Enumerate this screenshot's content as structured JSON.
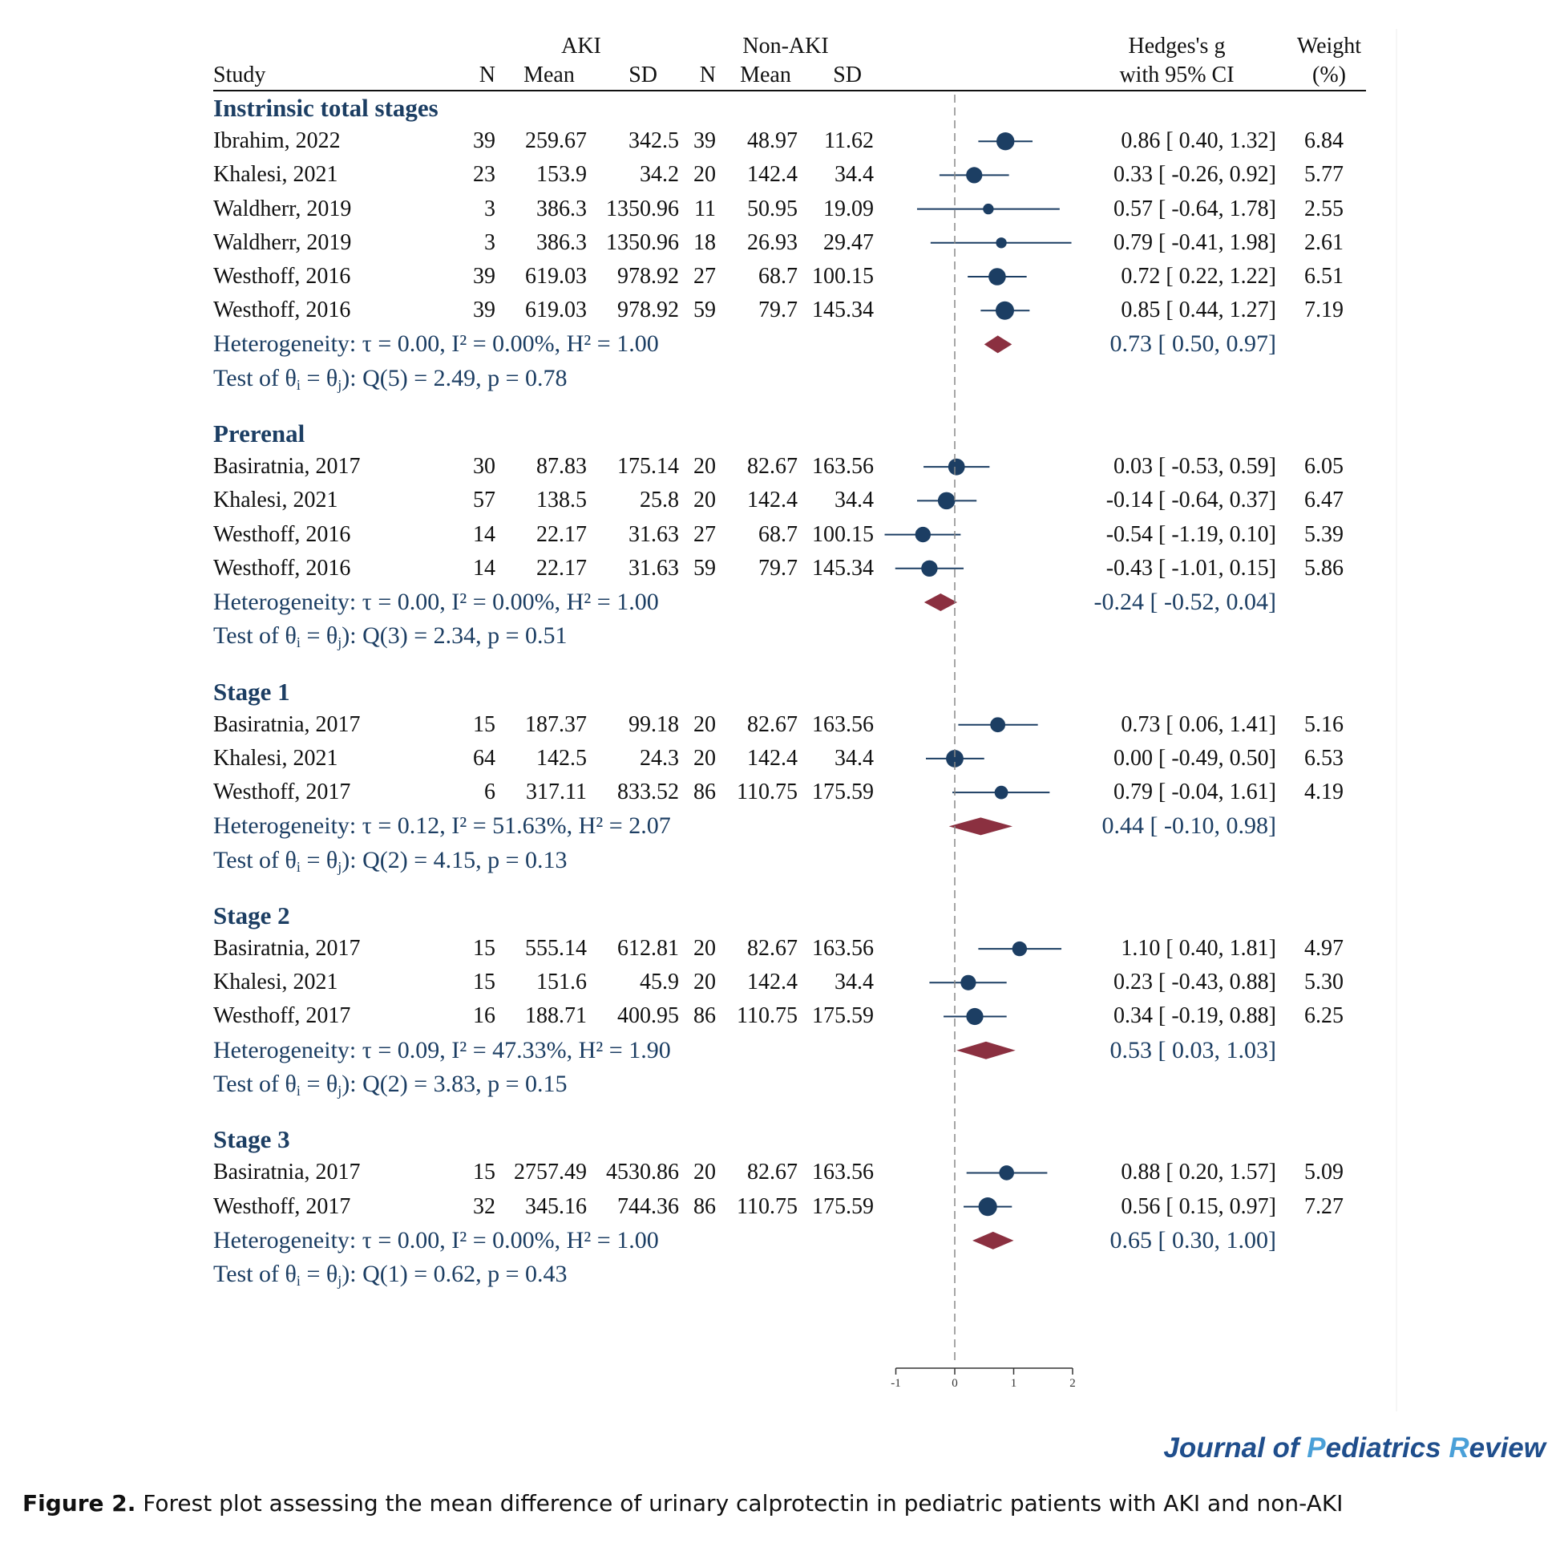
{
  "headers": {
    "study": "Study",
    "aki": "AKI",
    "non_aki": "Non-AKI",
    "n": "N",
    "mean": "Mean",
    "sd": "SD",
    "effect_line1": "Hedges's g",
    "effect_line2": "with 95% CI",
    "weight_line1": "Weight",
    "weight_line2": "(%)"
  },
  "chart_data": {
    "type": "forest",
    "effect_measure": "Hedges's g",
    "xlim": [
      -1,
      2
    ],
    "x_ticks": [
      "-1",
      "0",
      "1",
      "2"
    ],
    "reference_line": 0,
    "groups": [
      {
        "title": "Instrinsic total stages",
        "studies": [
          {
            "study": "Ibrahim, 2022",
            "n1": "39",
            "mean1": "259.67",
            "sd1": "342.5",
            "n2": "39",
            "mean2": "48.97",
            "sd2": "11.62",
            "g": 0.86,
            "lo": 0.4,
            "hi": 1.32,
            "ci_text": "0.86 [  0.40,  1.32]",
            "weight": "6.84"
          },
          {
            "study": "Khalesi, 2021",
            "n1": "23",
            "mean1": "153.9",
            "sd1": "34.2",
            "n2": "20",
            "mean2": "142.4",
            "sd2": "34.4",
            "g": 0.33,
            "lo": -0.26,
            "hi": 0.92,
            "ci_text": "0.33 [ -0.26,  0.92]",
            "weight": "5.77"
          },
          {
            "study": "Waldherr, 2019",
            "n1": "3",
            "mean1": "386.3",
            "sd1": "1350.96",
            "n2": "11",
            "mean2": "50.95",
            "sd2": "19.09",
            "g": 0.57,
            "lo": -0.64,
            "hi": 1.78,
            "ci_text": "0.57 [ -0.64,  1.78]",
            "weight": "2.55"
          },
          {
            "study": "Waldherr, 2019",
            "n1": "3",
            "mean1": "386.3",
            "sd1": "1350.96",
            "n2": "18",
            "mean2": "26.93",
            "sd2": "29.47",
            "g": 0.79,
            "lo": -0.41,
            "hi": 1.98,
            "ci_text": "0.79 [ -0.41,  1.98]",
            "weight": "2.61"
          },
          {
            "study": "Westhoff, 2016",
            "n1": "39",
            "mean1": "619.03",
            "sd1": "978.92",
            "n2": "27",
            "mean2": "68.7",
            "sd2": "100.15",
            "g": 0.72,
            "lo": 0.22,
            "hi": 1.22,
            "ci_text": "0.72 [  0.22,  1.22]",
            "weight": "6.51"
          },
          {
            "study": "Westhoff, 2016",
            "n1": "39",
            "mean1": "619.03",
            "sd1": "978.92",
            "n2": "59",
            "mean2": "79.7",
            "sd2": "145.34",
            "g": 0.85,
            "lo": 0.44,
            "hi": 1.27,
            "ci_text": "0.85 [  0.44,  1.27]",
            "weight": "7.19"
          }
        ],
        "heterogeneity": {
          "tau2": "0.00",
          "i2": "0.00%",
          "h2": "1.00",
          "text_tail": " = 0.00, I² = 0.00%, H² = 1.00"
        },
        "pooled": {
          "g": 0.73,
          "lo": 0.5,
          "hi": 0.97,
          "ci_text": "0.73 [  0.50,  0.97]"
        },
        "test": {
          "df": 5,
          "q": "2.49",
          "p": "0.78",
          "text_tail": "): Q(5) = 2.49, p = 0.78"
        }
      },
      {
        "title": "Prerenal",
        "studies": [
          {
            "study": "Basiratnia, 2017",
            "n1": "30",
            "mean1": "87.83",
            "sd1": "175.14",
            "n2": "20",
            "mean2": "82.67",
            "sd2": "163.56",
            "g": 0.03,
            "lo": -0.53,
            "hi": 0.59,
            "ci_text": "0.03 [ -0.53,  0.59]",
            "weight": "6.05"
          },
          {
            "study": "Khalesi, 2021",
            "n1": "57",
            "mean1": "138.5",
            "sd1": "25.8",
            "n2": "20",
            "mean2": "142.4",
            "sd2": "34.4",
            "g": -0.14,
            "lo": -0.64,
            "hi": 0.37,
            "ci_text": "-0.14 [ -0.64,  0.37]",
            "weight": "6.47"
          },
          {
            "study": "Westhoff, 2016",
            "n1": "14",
            "mean1": "22.17",
            "sd1": "31.63",
            "n2": "27",
            "mean2": "68.7",
            "sd2": "100.15",
            "g": -0.54,
            "lo": -1.19,
            "hi": 0.1,
            "ci_text": "-0.54 [ -1.19,  0.10]",
            "weight": "5.39"
          },
          {
            "study": "Westhoff, 2016",
            "n1": "14",
            "mean1": "22.17",
            "sd1": "31.63",
            "n2": "59",
            "mean2": "79.7",
            "sd2": "145.34",
            "g": -0.43,
            "lo": -1.01,
            "hi": 0.15,
            "ci_text": "-0.43 [ -1.01,  0.15]",
            "weight": "5.86"
          }
        ],
        "heterogeneity": {
          "tau2": "0.00",
          "i2": "0.00%",
          "h2": "1.00",
          "text_tail": " = 0.00, I² = 0.00%, H² = 1.00"
        },
        "pooled": {
          "g": -0.24,
          "lo": -0.52,
          "hi": 0.04,
          "ci_text": "-0.24 [ -0.52,  0.04]"
        },
        "test": {
          "df": 3,
          "q": "2.34",
          "p": "0.51",
          "text_tail": "): Q(3) = 2.34, p = 0.51"
        }
      },
      {
        "title": "Stage 1",
        "studies": [
          {
            "study": "Basiratnia, 2017",
            "n1": "15",
            "mean1": "187.37",
            "sd1": "99.18",
            "n2": "20",
            "mean2": "82.67",
            "sd2": "163.56",
            "g": 0.73,
            "lo": 0.06,
            "hi": 1.41,
            "ci_text": "0.73 [  0.06,  1.41]",
            "weight": "5.16"
          },
          {
            "study": "Khalesi, 2021",
            "n1": "64",
            "mean1": "142.5",
            "sd1": "24.3",
            "n2": "20",
            "mean2": "142.4",
            "sd2": "34.4",
            "g": 0.0,
            "lo": -0.49,
            "hi": 0.5,
            "ci_text": "0.00 [ -0.49,  0.50]",
            "weight": "6.53"
          },
          {
            "study": "Westhoff, 2017",
            "n1": "6",
            "mean1": "317.11",
            "sd1": "833.52",
            "n2": "86",
            "mean2": "110.75",
            "sd2": "175.59",
            "g": 0.79,
            "lo": -0.04,
            "hi": 1.61,
            "ci_text": "0.79 [ -0.04,  1.61]",
            "weight": "4.19"
          }
        ],
        "heterogeneity": {
          "tau2": "0.12",
          "i2": "51.63%",
          "h2": "2.07",
          "text_tail": " = 0.12, I² = 51.63%, H² = 2.07"
        },
        "pooled": {
          "g": 0.44,
          "lo": -0.1,
          "hi": 0.98,
          "ci_text": "0.44 [ -0.10,  0.98]"
        },
        "test": {
          "df": 2,
          "q": "4.15",
          "p": "0.13",
          "text_tail": "): Q(2) = 4.15, p = 0.13"
        }
      },
      {
        "title": "Stage 2",
        "studies": [
          {
            "study": "Basiratnia, 2017",
            "n1": "15",
            "mean1": "555.14",
            "sd1": "612.81",
            "n2": "20",
            "mean2": "82.67",
            "sd2": "163.56",
            "g": 1.1,
            "lo": 0.4,
            "hi": 1.81,
            "ci_text": "1.10 [  0.40,  1.81]",
            "weight": "4.97"
          },
          {
            "study": "Khalesi, 2021",
            "n1": "15",
            "mean1": "151.6",
            "sd1": "45.9",
            "n2": "20",
            "mean2": "142.4",
            "sd2": "34.4",
            "g": 0.23,
            "lo": -0.43,
            "hi": 0.88,
            "ci_text": "0.23 [ -0.43,  0.88]",
            "weight": "5.30"
          },
          {
            "study": "Westhoff, 2017",
            "n1": "16",
            "mean1": "188.71",
            "sd1": "400.95",
            "n2": "86",
            "mean2": "110.75",
            "sd2": "175.59",
            "g": 0.34,
            "lo": -0.19,
            "hi": 0.88,
            "ci_text": "0.34 [ -0.19,  0.88]",
            "weight": "6.25"
          }
        ],
        "heterogeneity": {
          "tau2": "0.09",
          "i2": "47.33%",
          "h2": "1.90",
          "text_tail": " = 0.09, I² = 47.33%, H² = 1.90"
        },
        "pooled": {
          "g": 0.53,
          "lo": 0.03,
          "hi": 1.03,
          "ci_text": "0.53 [  0.03,  1.03]"
        },
        "test": {
          "df": 2,
          "q": "3.83",
          "p": "0.15",
          "text_tail": "): Q(2) = 3.83, p = 0.15"
        }
      },
      {
        "title": "Stage 3",
        "studies": [
          {
            "study": "Basiratnia, 2017",
            "n1": "15",
            "mean1": "2757.49",
            "sd1": "4530.86",
            "n2": "20",
            "mean2": "82.67",
            "sd2": "163.56",
            "g": 0.88,
            "lo": 0.2,
            "hi": 1.57,
            "ci_text": "0.88 [  0.20,  1.57]",
            "weight": "5.09"
          },
          {
            "study": "Westhoff, 2017",
            "n1": "32",
            "mean1": "345.16",
            "sd1": "744.36",
            "n2": "86",
            "mean2": "110.75",
            "sd2": "175.59",
            "g": 0.56,
            "lo": 0.15,
            "hi": 0.97,
            "ci_text": "0.56 [  0.15,  0.97]",
            "weight": "7.27"
          }
        ],
        "heterogeneity": {
          "tau2": "0.00",
          "i2": "0.00%",
          "h2": "1.00",
          "text_tail": " = 0.00, I² = 0.00%, H² = 1.00"
        },
        "pooled": {
          "g": 0.65,
          "lo": 0.3,
          "hi": 1.0,
          "ci_text": "0.65 [  0.30,  1.00]"
        },
        "test": {
          "df": 1,
          "q": "0.62",
          "p": "0.43",
          "text_tail": "): Q(1) = 0.62, p = 0.43"
        }
      }
    ]
  },
  "labels": {
    "heterogeneity_prefix": "Heterogeneity: τ",
    "test_prefix": "Test of θ",
    "test_mid": " = θ",
    "sub_i": "i",
    "sub_j": "j"
  },
  "colors": {
    "marker": "#1c3e63",
    "diamond": "#8b3040",
    "text_blue": "#1c3e63",
    "reference_line": "#888888",
    "brand": "#1f4e8c",
    "brand_accent": "#4aa0d8"
  },
  "brand": {
    "part1": "Journal of ",
    "accent1": "P",
    "part2": "ediatrics ",
    "accent2": "R",
    "part3": "eview"
  },
  "caption": {
    "label": "Figure 2.",
    "text": " Forest plot assessing the mean difference of urinary calprotectin in pediatric patients with AKI and non-AKI"
  }
}
